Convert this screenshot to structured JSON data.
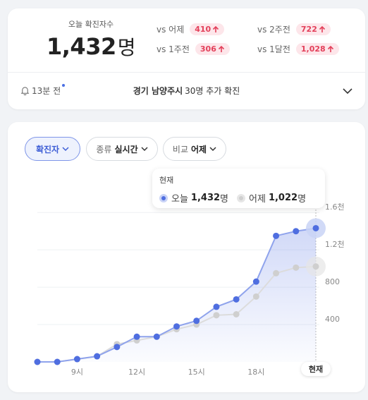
{
  "summary": {
    "today_label": "오늘 확진자수",
    "today_value": "1,432",
    "today_unit": "명",
    "comparisons": [
      {
        "label": "vs 어제",
        "value": "410"
      },
      {
        "label": "vs 2주전",
        "value": "722"
      },
      {
        "label": "vs 1주전",
        "value": "306"
      },
      {
        "label": "vs 1달전",
        "value": "1,028"
      }
    ],
    "accent_color": "#e3405a"
  },
  "notice": {
    "time": "13분 전",
    "region": "경기 남양주시",
    "message": "30명 추가 확진"
  },
  "filters": {
    "cases": "확진자",
    "type_label": "종류",
    "type_value": "실시간",
    "compare_label": "비교",
    "compare_value": "어제"
  },
  "tooltip": {
    "title": "현재",
    "today_name": "오늘",
    "today_value": "1,432",
    "yesterday_name": "어제",
    "yesterday_value": "1,022",
    "unit": "명"
  },
  "now_label": "현재",
  "chart_data": {
    "type": "line",
    "x": [
      7,
      8,
      9,
      10,
      11,
      12,
      13,
      14,
      15,
      16,
      17,
      18,
      19,
      20,
      21
    ],
    "x_tick_labels": [
      "9시",
      "12시",
      "15시",
      "18시"
    ],
    "x_tick_positions": [
      9,
      12,
      15,
      18
    ],
    "y_tick_labels": [
      "400",
      "800",
      "1.2천",
      "1.6천"
    ],
    "y_tick_values": [
      400,
      800,
      1200,
      1600
    ],
    "ylim": [
      0,
      1700
    ],
    "series": [
      {
        "name": "오늘",
        "color": "#4f6ee0",
        "values": [
          0,
          0,
          30,
          60,
          160,
          270,
          270,
          380,
          440,
          590,
          670,
          860,
          1350,
          1400,
          1432
        ]
      },
      {
        "name": "어제",
        "color": "#cfcfcf",
        "values": [
          0,
          0,
          30,
          60,
          190,
          230,
          270,
          350,
          400,
          500,
          510,
          700,
          950,
          1010,
          1022
        ]
      }
    ],
    "grid": true
  }
}
